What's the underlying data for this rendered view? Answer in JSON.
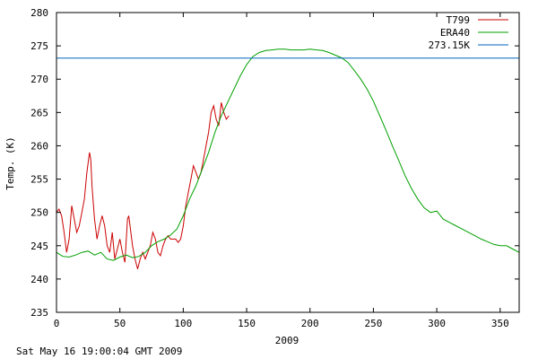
{
  "footer": "Sat May 16 19:00:04 GMT 2009",
  "chart_data": {
    "type": "line",
    "title": "",
    "xlabel": "2009",
    "ylabel": "Temp. (K)",
    "xlim": [
      0,
      365
    ],
    "ylim": [
      235,
      280
    ],
    "xticks": [
      0,
      50,
      100,
      150,
      200,
      250,
      300,
      350
    ],
    "yticks": [
      235,
      240,
      245,
      250,
      255,
      260,
      265,
      270,
      275,
      280
    ],
    "grid": false,
    "legend": "top-right",
    "series": [
      {
        "name": "T799",
        "color": "#cc0000",
        "x": [
          0,
          2,
          4,
          6,
          8,
          10,
          12,
          14,
          16,
          18,
          20,
          22,
          24,
          26,
          27,
          28,
          30,
          32,
          34,
          36,
          38,
          40,
          42,
          44,
          46,
          48,
          50,
          52,
          54,
          56,
          57,
          58,
          60,
          62,
          64,
          66,
          68,
          70,
          72,
          74,
          76,
          78,
          80,
          82,
          84,
          86,
          88,
          90,
          92,
          94,
          96,
          98,
          100,
          102,
          104,
          106,
          108,
          110,
          112,
          114,
          116,
          118,
          120,
          122,
          124,
          126,
          128,
          130,
          132,
          134,
          136
        ],
        "y": [
          250,
          250.5,
          249.5,
          247,
          244,
          246,
          251,
          249,
          247,
          248,
          250,
          252,
          256,
          259,
          258,
          254,
          249,
          246,
          248,
          249.5,
          248,
          245,
          244,
          247,
          243,
          244.5,
          246,
          244,
          242.5,
          249,
          249.5,
          248,
          245,
          243,
          241.5,
          243,
          244,
          243,
          244,
          245,
          247,
          246,
          244,
          243.5,
          245,
          246,
          246.5,
          246,
          246,
          246,
          245.5,
          246,
          248,
          251,
          253,
          255,
          257,
          256,
          255,
          256,
          258,
          260,
          262,
          265,
          266,
          264,
          263,
          266.5,
          265,
          264,
          264.5
        ]
      },
      {
        "name": "ERA40",
        "color": "#00a000",
        "x": [
          0,
          5,
          10,
          15,
          20,
          25,
          30,
          35,
          40,
          45,
          50,
          55,
          60,
          65,
          70,
          75,
          80,
          85,
          90,
          95,
          100,
          105,
          110,
          115,
          120,
          125,
          130,
          135,
          140,
          145,
          150,
          155,
          160,
          165,
          170,
          175,
          180,
          185,
          190,
          195,
          200,
          205,
          210,
          215,
          220,
          225,
          230,
          235,
          240,
          245,
          250,
          255,
          260,
          265,
          270,
          275,
          280,
          285,
          290,
          295,
          300,
          305,
          310,
          315,
          320,
          325,
          330,
          335,
          340,
          345,
          350,
          355,
          360,
          365
        ],
        "y": [
          244,
          243.4,
          243.3,
          243.6,
          244,
          244.2,
          243.6,
          244,
          243,
          242.8,
          243.3,
          243.6,
          243.2,
          243.4,
          244,
          245,
          245.6,
          246,
          246.6,
          247.5,
          249.5,
          252,
          254,
          256.5,
          259,
          262,
          264.5,
          266.5,
          268.5,
          270.5,
          272.2,
          273.4,
          274,
          274.3,
          274.4,
          274.5,
          274.5,
          274.4,
          274.4,
          274.4,
          274.5,
          274.4,
          274.3,
          274,
          273.6,
          273.2,
          272.5,
          271.3,
          270,
          268.5,
          266.7,
          264.5,
          262.3,
          260,
          257.8,
          255.5,
          253.6,
          252,
          250.7,
          250,
          250.2,
          249,
          248.5,
          248,
          247.5,
          247,
          246.5,
          246,
          245.6,
          245.2,
          245,
          245,
          244.5,
          244
        ]
      },
      {
        "name": "273.15K",
        "color": "#0066bb",
        "x": [
          0,
          365
        ],
        "y": [
          273.15,
          273.15
        ]
      }
    ]
  }
}
